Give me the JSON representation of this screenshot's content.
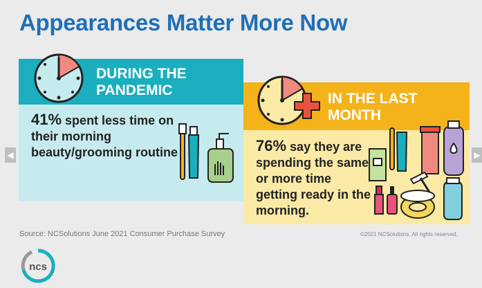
{
  "title": "Appearances Matter More Now",
  "nav": {
    "prev_icon": "chevron-left-icon",
    "next_icon": "chevron-right-icon"
  },
  "chart_data": {
    "type": "table",
    "title": "Appearances Matter More Now",
    "panels": [
      {
        "heading": "DURING THE PANDEMIC",
        "value": 41,
        "value_text": "41%",
        "statement": " spent less time on their morning beauty/grooming routine",
        "color": "#1aaebf"
      },
      {
        "heading": "IN THE LAST MONTH",
        "value": 76,
        "value_text": "76%",
        "statement": " say they are spending the same or more time getting ready in the morning.",
        "color": "#f4b31a"
      }
    ]
  },
  "source": "Source: NCSolutions June 2021 Consumer Purchase Survey",
  "copyright": "©2021 NCSolutions. All rights reserved.",
  "logo_text": "ncs",
  "colors": {
    "title": "#1f6fb7",
    "teal": "#1aaebf",
    "gold": "#f4b31a",
    "coral": "#f08a80"
  }
}
